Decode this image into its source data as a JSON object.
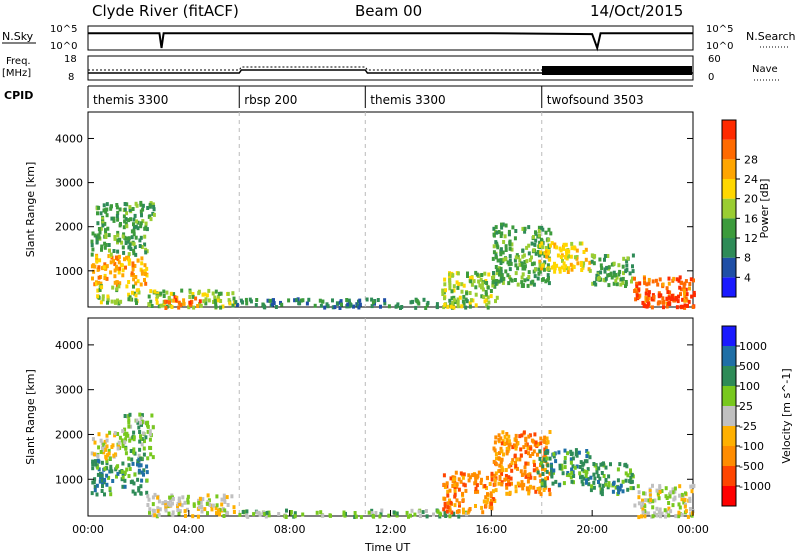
{
  "header": {
    "station": "Clyde River (fitACF)",
    "beam": "Beam 00",
    "date": "14/Oct/2015"
  },
  "labels": {
    "nsky": "N.Sky",
    "nsearch": "N.Search",
    "freq": "Freq.",
    "mhz": "[MHz]",
    "nave": "Nave",
    "cpid": "CPID",
    "nsky_hi": "10^5",
    "nsky_lo": "10^0",
    "freq_hi": "18",
    "freq_lo": "8",
    "nave_hi": "60",
    "nave_lo": "0"
  },
  "colors": {
    "power": [
      "#1a1aff",
      "#1f4fa6",
      "#2e8b57",
      "#3c9b3c",
      "#9acd32",
      "#ffd700",
      "#ffa500",
      "#ff6a00",
      "#ff2a00"
    ],
    "velocity": [
      "#ff0000",
      "#ff4500",
      "#ff8c00",
      "#ffb000",
      "#c0c0c0",
      "#78c81e",
      "#2e8b57",
      "#1f6fa6",
      "#1a1aff"
    ]
  },
  "chart_data": [
    {
      "type": "line",
      "name": "sky-noise",
      "x": [
        "00:00",
        "01:00",
        "02:00",
        "02:50",
        "02:55",
        "03:00",
        "04:00",
        "08:00",
        "12:00",
        "16:00",
        "20:00",
        "20:12",
        "20:20",
        "24:00"
      ],
      "y": [
        5000,
        5000,
        5000,
        5000,
        1,
        5000,
        5000,
        5000,
        5000,
        5000,
        3000,
        1,
        5000,
        5000
      ],
      "y_scale": "log",
      "ylim": [
        1,
        100000
      ]
    },
    {
      "type": "line",
      "name": "frequency-and-nave",
      "x": [
        "00:00",
        "06:00",
        "06:05",
        "11:00",
        "11:05",
        "18:00",
        "20:00",
        "24:00"
      ],
      "frequency_mhz": [
        10.5,
        10.5,
        12,
        12,
        10.5,
        10.5,
        10.5,
        10.5
      ],
      "ylim_freq": [
        8,
        18
      ],
      "ylim_nave": [
        0,
        60
      ]
    },
    {
      "type": "table",
      "name": "cpid",
      "entries": [
        {
          "start": "00:00",
          "end": "06:00",
          "label": "themis 3300"
        },
        {
          "start": "06:00",
          "end": "11:00",
          "label": "rbsp 200"
        },
        {
          "start": "11:00",
          "end": "18:00",
          "label": "themis 3300"
        },
        {
          "start": "18:00",
          "end": "24:00",
          "label": "twofsound 3503"
        }
      ]
    },
    {
      "type": "heatmap",
      "name": "power",
      "ylabel": "Slant Range [km]",
      "yticks": [
        "1000",
        "2000",
        "3000",
        "4000"
      ],
      "ylim": [
        180,
        4600
      ],
      "colorbar_label": "Power [dB]",
      "colorbar_ticks": [
        "4",
        "8",
        "12",
        "16",
        "20",
        "24",
        "28"
      ],
      "blobs": [
        {
          "t0": 0.1,
          "t1": 2.3,
          "r0": 700,
          "r1": 1400,
          "level": 6
        },
        {
          "t0": 0.1,
          "t1": 2.3,
          "r0": 1400,
          "r1": 2000,
          "level": 3
        },
        {
          "t0": 0.3,
          "t1": 2.6,
          "r0": 2000,
          "r1": 2600,
          "level": 3
        },
        {
          "t0": 0.3,
          "t1": 2.0,
          "r0": 300,
          "r1": 700,
          "level": 4
        },
        {
          "t0": 2.3,
          "t1": 5.8,
          "r0": 200,
          "r1": 600,
          "level": 4
        },
        {
          "t0": 3.0,
          "t1": 4.5,
          "r0": 200,
          "r1": 450,
          "level": 7
        },
        {
          "t0": 5.8,
          "t1": 15.0,
          "r0": 200,
          "r1": 400,
          "level": 2
        },
        {
          "t0": 14.0,
          "t1": 16.2,
          "r0": 200,
          "r1": 1000,
          "level": 4
        },
        {
          "t0": 16.0,
          "t1": 18.3,
          "r0": 700,
          "r1": 2100,
          "level": 3
        },
        {
          "t0": 17.8,
          "t1": 19.9,
          "r0": 1000,
          "r1": 1700,
          "level": 5
        },
        {
          "t0": 19.9,
          "t1": 21.6,
          "r0": 700,
          "r1": 1400,
          "level": 3
        },
        {
          "t0": 21.6,
          "t1": 24.0,
          "r0": 200,
          "r1": 900,
          "level": 7
        },
        {
          "t0": 22.0,
          "t1": 23.8,
          "r0": 200,
          "r1": 500,
          "level": 8
        }
      ]
    },
    {
      "type": "heatmap",
      "name": "velocity",
      "ylabel": "Slant Range [km]",
      "yticks": [
        "1000",
        "2000",
        "3000",
        "4000"
      ],
      "ylim": [
        180,
        4600
      ],
      "colorbar_label": "Velocity [m s^-1]",
      "colorbar_ticks": [
        "-1000",
        "-500",
        "-100",
        "-25",
        "25",
        "100",
        "500",
        "1000"
      ],
      "blobs": [
        {
          "t0": 0.1,
          "t1": 2.3,
          "r0": 700,
          "r1": 1500,
          "level": 6
        },
        {
          "t0": 0.1,
          "t1": 1.3,
          "r0": 1500,
          "r1": 2100,
          "level": 4
        },
        {
          "t0": 1.3,
          "t1": 2.6,
          "r0": 1500,
          "r1": 2500,
          "level": 5
        },
        {
          "t0": 2.3,
          "t1": 5.8,
          "r0": 200,
          "r1": 700,
          "level": 4
        },
        {
          "t0": 5.8,
          "t1": 15.0,
          "r0": 200,
          "r1": 350,
          "level": 5
        },
        {
          "t0": 14.0,
          "t1": 16.2,
          "r0": 300,
          "r1": 1200,
          "level": 2
        },
        {
          "t0": 16.0,
          "t1": 18.3,
          "r0": 700,
          "r1": 2100,
          "level": 2
        },
        {
          "t0": 17.8,
          "t1": 19.9,
          "r0": 900,
          "r1": 1700,
          "level": 6
        },
        {
          "t0": 19.9,
          "t1": 21.6,
          "r0": 700,
          "r1": 1400,
          "level": 6
        },
        {
          "t0": 21.6,
          "t1": 24.0,
          "r0": 200,
          "r1": 900,
          "level": 4
        }
      ]
    }
  ],
  "xaxis": {
    "ticks": [
      "00:00",
      "04:00",
      "08:00",
      "12:00",
      "16:00",
      "20:00",
      "00:00"
    ],
    "label": "Time UT"
  }
}
